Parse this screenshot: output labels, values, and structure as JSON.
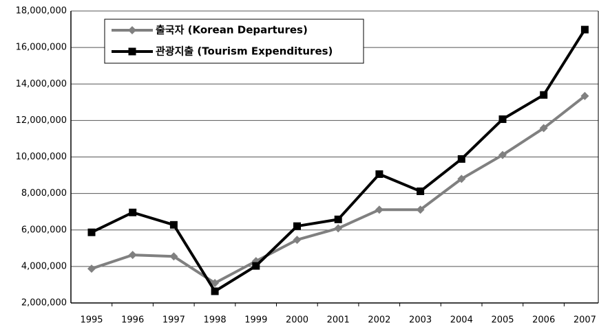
{
  "chart_data": {
    "type": "line",
    "categories": [
      "1995",
      "1996",
      "1997",
      "1998",
      "1999",
      "2000",
      "2001",
      "2002",
      "2003",
      "2004",
      "2005",
      "2006",
      "2007"
    ],
    "series": [
      {
        "name": "출국자 (Korean Departures)",
        "color": "#808080",
        "marker": "diamond",
        "values": [
          3880000,
          4630000,
          4550000,
          3090000,
          4290000,
          5460000,
          6090000,
          7110000,
          7110000,
          8800000,
          10110000,
          11580000,
          13340000
        ]
      },
      {
        "name": "관광지출 (Tourism Expenditures)",
        "color": "#000000",
        "marker": "square",
        "values": [
          5870000,
          6960000,
          6280000,
          2640000,
          4030000,
          6210000,
          6580000,
          9060000,
          8120000,
          9890000,
          12070000,
          13400000,
          16980000
        ]
      }
    ],
    "ylim": [
      2000000,
      18000000
    ],
    "yticks": [
      {
        "value": 2000000,
        "label": "2,000,000"
      },
      {
        "value": 4000000,
        "label": "4,000,000"
      },
      {
        "value": 6000000,
        "label": "6,000,000"
      },
      {
        "value": 8000000,
        "label": "8,000,000"
      },
      {
        "value": 10000000,
        "label": "10,000,000"
      },
      {
        "value": 12000000,
        "label": "12,000,000"
      },
      {
        "value": 14000000,
        "label": "14,000,000"
      },
      {
        "value": 16000000,
        "label": "16,000,000"
      },
      {
        "value": 18000000,
        "label": "18,000,000"
      }
    ],
    "grid": true,
    "legend": "upper left"
  }
}
